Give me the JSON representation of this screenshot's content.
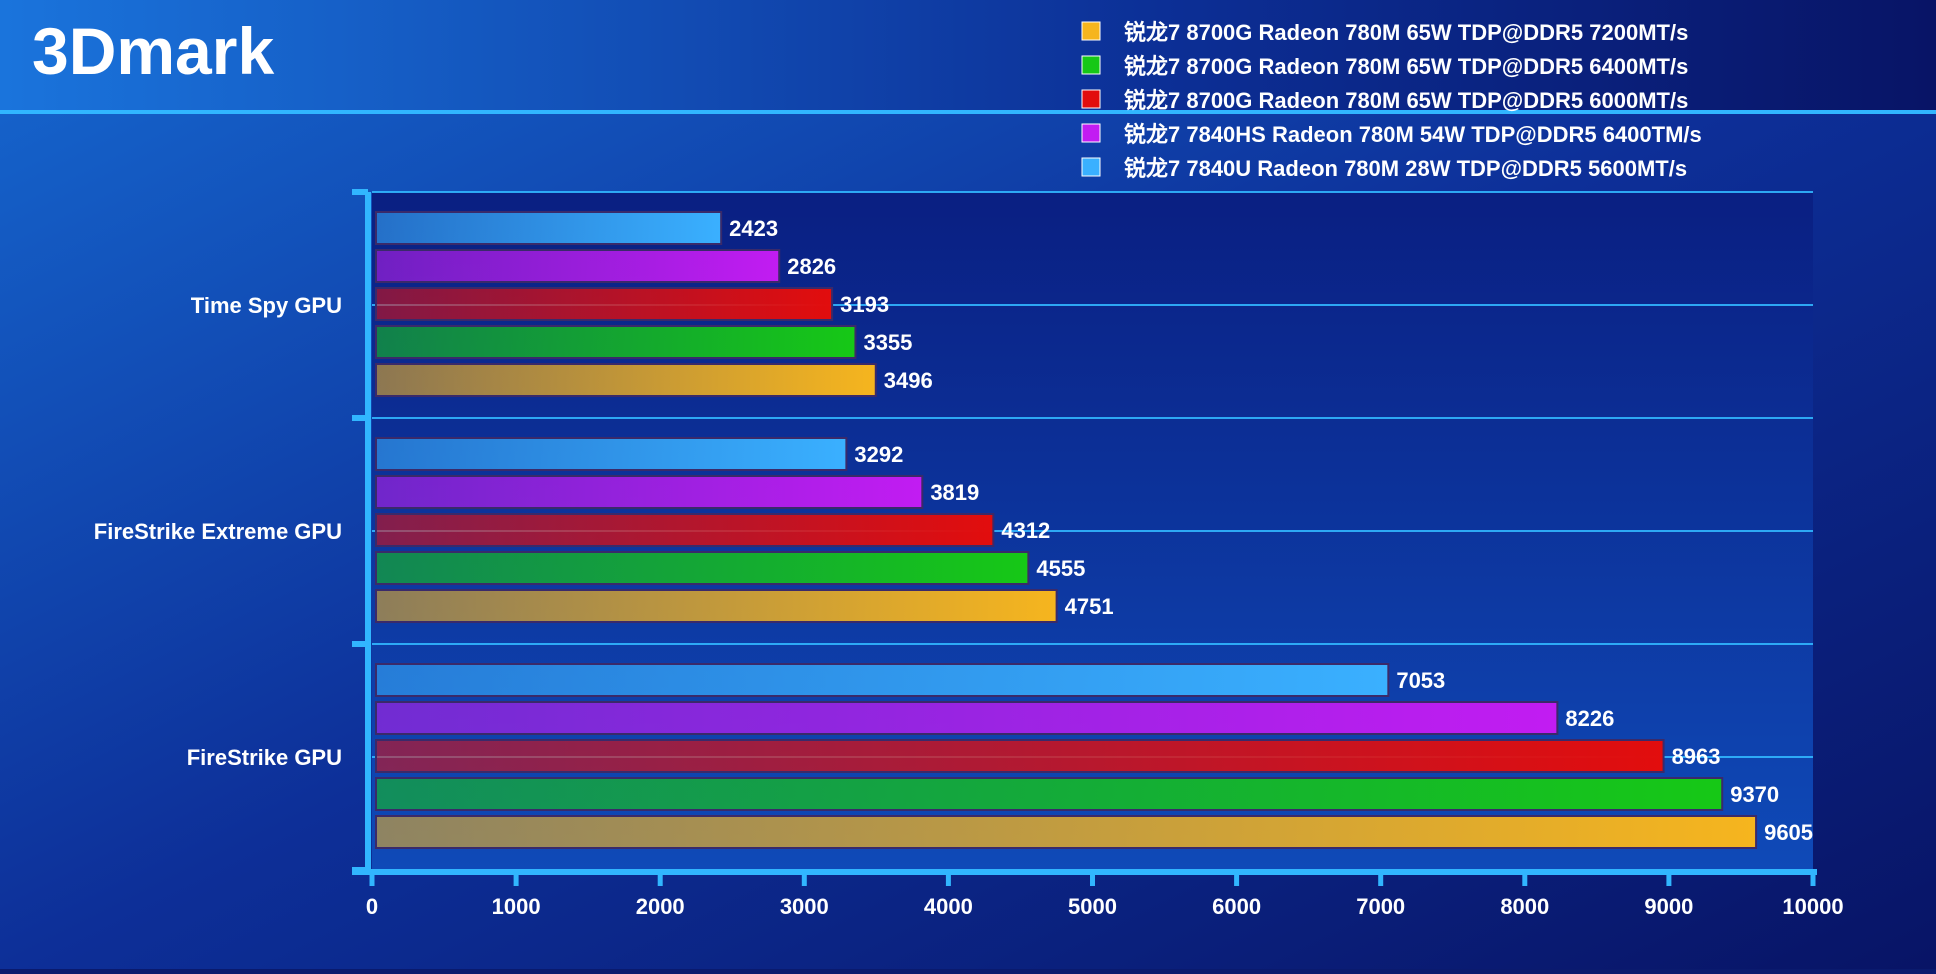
{
  "chart_data": {
    "type": "bar",
    "orientation": "horizontal",
    "title": "3Dmark",
    "categories": [
      "Time Spy GPU",
      "FireStrike Extreme GPU",
      "FireStrike GPU"
    ],
    "xlim": [
      0,
      10000
    ],
    "xticks": [
      "0",
      "1000",
      "2000",
      "3000",
      "4000",
      "5000",
      "6000",
      "7000",
      "8000",
      "9000",
      "10000"
    ],
    "legend_position": "top-right",
    "grid": true,
    "series": [
      {
        "name": "锐龙7 7840U Radeon 780M 28W TDP@DDR5 5600MT/s",
        "values": [
          2423,
          3292,
          7053
        ],
        "color": "#3ab0ff"
      },
      {
        "name": "锐龙7 7840HS Radeon 780M 54W TDP@DDR5 6400TM/s",
        "values": [
          2826,
          3819,
          8226
        ],
        "color": "#c21cf2"
      },
      {
        "name": "锐龙7 8700G Radeon 780M 65W TDP@DDR5 6000MT/s",
        "values": [
          3193,
          4312,
          8963
        ],
        "color": "#e20d0d"
      },
      {
        "name": "锐龙7 8700G Radeon 780M 65W TDP@DDR5 6400MT/s",
        "values": [
          3355,
          4555,
          9370
        ],
        "color": "#16c816"
      },
      {
        "name": "锐龙7 8700G Radeon 780M 65W TDP@DDR5 7200MT/s",
        "values": [
          3496,
          4751,
          9605
        ],
        "color": "#f6b51e"
      }
    ]
  },
  "colors": {
    "bg_dark": "#0a1a6e",
    "bg_light": "#1a6fd6",
    "accent_line": "#31b6ff",
    "text": "#ffffff"
  }
}
